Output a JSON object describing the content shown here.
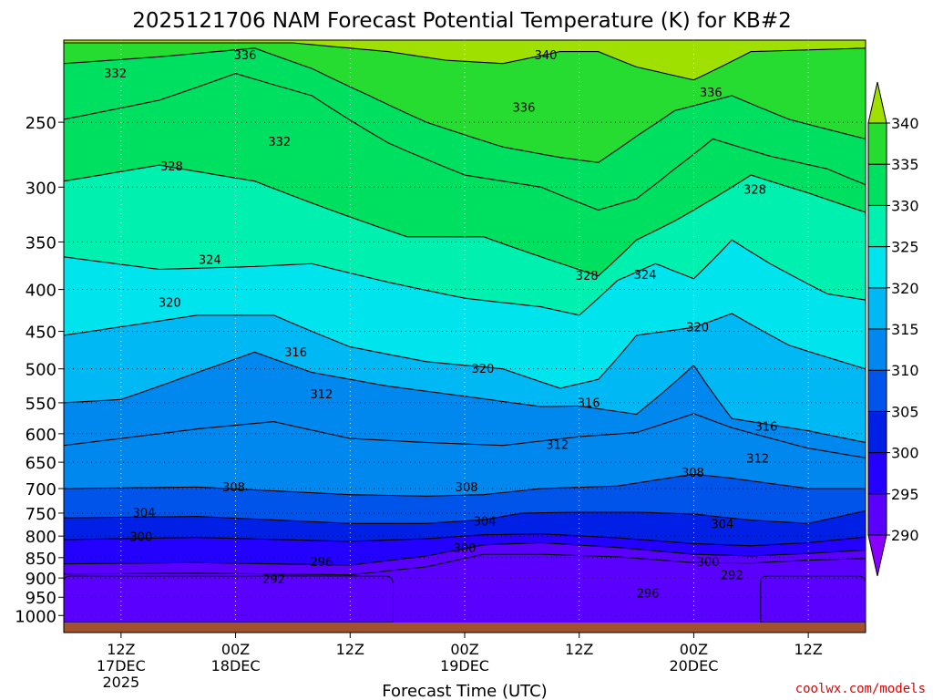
{
  "chart_data": {
    "type": "heatmap",
    "title": "2025121706 NAM Forecast Potential Temperature (K) for KB#2",
    "xlabel": "Forecast Time (UTC)",
    "ylabel": "",
    "y_scale": "log",
    "ylim": [
      1020,
      200
    ],
    "y_ticks": [
      {
        "value": 250,
        "label": "250"
      },
      {
        "value": 300,
        "label": "300"
      },
      {
        "value": 350,
        "label": "350"
      },
      {
        "value": 400,
        "label": "400"
      },
      {
        "value": 450,
        "label": "450"
      },
      {
        "value": 500,
        "label": "500"
      },
      {
        "value": 550,
        "label": "550"
      },
      {
        "value": 600,
        "label": "600"
      },
      {
        "value": 650,
        "label": "650"
      },
      {
        "value": 700,
        "label": "700"
      },
      {
        "value": 750,
        "label": "750"
      },
      {
        "value": 800,
        "label": "800"
      },
      {
        "value": 850,
        "label": "850"
      },
      {
        "value": 900,
        "label": "900"
      },
      {
        "value": 950,
        "label": "950"
      },
      {
        "value": 1000,
        "label": "1000"
      }
    ],
    "xlim": [
      6,
      90
    ],
    "x_ticks": [
      {
        "value": 12,
        "lines": [
          "12Z",
          "17DEC",
          "2025"
        ]
      },
      {
        "value": 24,
        "lines": [
          "00Z",
          "18DEC"
        ]
      },
      {
        "value": 36,
        "lines": [
          "12Z"
        ]
      },
      {
        "value": 48,
        "lines": [
          "00Z",
          "19DEC"
        ]
      },
      {
        "value": 60,
        "lines": [
          "12Z"
        ]
      },
      {
        "value": 72,
        "lines": [
          "00Z",
          "20DEC"
        ]
      },
      {
        "value": 84,
        "lines": [
          "12Z"
        ]
      }
    ],
    "grid": true,
    "colorbar": {
      "levels": [
        290,
        295,
        300,
        305,
        310,
        315,
        320,
        325,
        330,
        335,
        340
      ],
      "labels": [
        "290",
        "295",
        "300",
        "305",
        "310",
        "315",
        "320",
        "325",
        "330",
        "335",
        "340"
      ],
      "colors": [
        "#8a00ff",
        "#5a00ff",
        "#2400ff",
        "#0020e6",
        "#0054ea",
        "#0088ee",
        "#00b8f4",
        "#00e4ee",
        "#00f0b0",
        "#00e060",
        "#26dc30",
        "#a0e000"
      ]
    },
    "isentrope_interval": 4,
    "isentropes": [
      {
        "theta": 292,
        "p": [
          [
            6,
            890
          ],
          [
            20,
            888
          ],
          [
            36,
            892
          ],
          [
            44,
            872
          ],
          [
            50,
            842
          ],
          [
            56,
            842
          ],
          [
            64,
            848
          ],
          [
            72,
            862
          ],
          [
            78,
            863
          ],
          [
            84,
            856
          ],
          [
            90,
            852
          ]
        ]
      },
      {
        "theta": 296,
        "p": [
          [
            6,
            865
          ],
          [
            20,
            862
          ],
          [
            36,
            868
          ],
          [
            44,
            846
          ],
          [
            50,
            820
          ],
          [
            56,
            815
          ],
          [
            64,
            826
          ],
          [
            72,
            842
          ],
          [
            78,
            846
          ],
          [
            84,
            840
          ],
          [
            90,
            832
          ]
        ]
      },
      {
        "theta": 300,
        "p": [
          [
            6,
            808
          ],
          [
            20,
            803
          ],
          [
            36,
            812
          ],
          [
            44,
            806
          ],
          [
            50,
            797
          ],
          [
            56,
            795
          ],
          [
            64,
            804
          ],
          [
            72,
            817
          ],
          [
            78,
            822
          ],
          [
            84,
            815
          ],
          [
            90,
            802
          ]
        ]
      },
      {
        "theta": 304,
        "p": [
          [
            6,
            760
          ],
          [
            20,
            757
          ],
          [
            36,
            772
          ],
          [
            44,
            772
          ],
          [
            50,
            764
          ],
          [
            54,
            750
          ],
          [
            60,
            748
          ],
          [
            66,
            748
          ],
          [
            72,
            752
          ],
          [
            78,
            765
          ],
          [
            84,
            772
          ],
          [
            90,
            745
          ]
        ]
      },
      {
        "theta": 308,
        "p": [
          [
            6,
            700
          ],
          [
            20,
            697
          ],
          [
            36,
            712
          ],
          [
            44,
            715
          ],
          [
            50,
            712
          ],
          [
            56,
            700
          ],
          [
            64,
            695
          ],
          [
            72,
            672
          ],
          [
            76,
            680
          ],
          [
            84,
            700
          ],
          [
            90,
            700
          ]
        ]
      },
      {
        "theta": 312,
        "p": [
          [
            6,
            620
          ],
          [
            20,
            592
          ],
          [
            28,
            580
          ],
          [
            36,
            608
          ],
          [
            44,
            615
          ],
          [
            52,
            620
          ],
          [
            60,
            605
          ],
          [
            66,
            598
          ],
          [
            72,
            567
          ],
          [
            76,
            590
          ],
          [
            84,
            625
          ],
          [
            90,
            642
          ]
        ]
      },
      {
        "theta": 316,
        "p": [
          [
            6,
            550
          ],
          [
            12,
            545
          ],
          [
            20,
            505
          ],
          [
            26,
            477
          ],
          [
            32,
            505
          ],
          [
            40,
            525
          ],
          [
            48,
            540
          ],
          [
            56,
            556
          ],
          [
            60,
            555
          ],
          [
            66,
            568
          ],
          [
            72,
            495
          ],
          [
            76,
            575
          ],
          [
            84,
            595
          ],
          [
            90,
            615
          ]
        ]
      },
      {
        "theta": 320,
        "p": [
          [
            6,
            455
          ],
          [
            20,
            430
          ],
          [
            28,
            430
          ],
          [
            36,
            470
          ],
          [
            44,
            490
          ],
          [
            52,
            500
          ],
          [
            58,
            528
          ],
          [
            62,
            515
          ],
          [
            66,
            455
          ],
          [
            72,
            445
          ],
          [
            76,
            428
          ],
          [
            82,
            468
          ],
          [
            90,
            500
          ]
        ]
      },
      {
        "theta": 324,
        "p": [
          [
            6,
            365
          ],
          [
            16,
            378
          ],
          [
            26,
            375
          ],
          [
            32,
            372
          ],
          [
            40,
            392
          ],
          [
            48,
            410
          ],
          [
            56,
            420
          ],
          [
            60,
            430
          ],
          [
            64,
            390
          ],
          [
            68,
            372
          ],
          [
            72,
            388
          ],
          [
            76,
            348
          ],
          [
            80,
            372
          ],
          [
            86,
            405
          ],
          [
            90,
            412
          ]
        ]
      },
      {
        "theta": 328,
        "p": [
          [
            6,
            295
          ],
          [
            16,
            282
          ],
          [
            26,
            295
          ],
          [
            34,
            320
          ],
          [
            42,
            345
          ],
          [
            50,
            345
          ],
          [
            56,
            365
          ],
          [
            62,
            385
          ],
          [
            66,
            348
          ],
          [
            70,
            330
          ],
          [
            74,
            310
          ],
          [
            78,
            290
          ],
          [
            84,
            305
          ],
          [
            90,
            322
          ]
        ]
      },
      {
        "theta": 332,
        "p": [
          [
            6,
            248
          ],
          [
            16,
            235
          ],
          [
            24,
            218
          ],
          [
            32,
            232
          ],
          [
            40,
            265
          ],
          [
            48,
            290
          ],
          [
            56,
            300
          ],
          [
            62,
            320
          ],
          [
            66,
            310
          ],
          [
            70,
            285
          ],
          [
            74,
            262
          ],
          [
            80,
            275
          ],
          [
            86,
            285
          ],
          [
            90,
            298
          ]
        ]
      },
      {
        "theta": 336,
        "p": [
          [
            6,
            212
          ],
          [
            16,
            208
          ],
          [
            26,
            203
          ],
          [
            32,
            215
          ],
          [
            38,
            232
          ],
          [
            44,
            250
          ],
          [
            52,
            268
          ],
          [
            58,
            276
          ],
          [
            62,
            280
          ],
          [
            66,
            260
          ],
          [
            70,
            242
          ],
          [
            76,
            232
          ],
          [
            82,
            248
          ],
          [
            90,
            262
          ]
        ]
      },
      {
        "theta": 340,
        "p": [
          [
            6,
            200
          ],
          [
            30,
            200
          ],
          [
            40,
            205
          ],
          [
            46,
            210
          ],
          [
            52,
            212
          ],
          [
            58,
            205
          ],
          [
            62,
            205
          ],
          [
            66,
            214
          ],
          [
            72,
            222
          ],
          [
            78,
            205
          ],
          [
            90,
            203
          ]
        ]
      }
    ],
    "contour_labels": [
      {
        "theta": 336,
        "x": 25.0,
        "p": 207,
        "text": "336"
      },
      {
        "theta": 340,
        "x": 56.5,
        "p": 207,
        "text": "340"
      },
      {
        "theta": 332,
        "x": 11.4,
        "p": 218,
        "text": "332"
      },
      {
        "theta": 336,
        "x": 73.8,
        "p": 230,
        "text": "336"
      },
      {
        "theta": 336,
        "x": 54.2,
        "p": 240,
        "text": "336"
      },
      {
        "theta": 332,
        "x": 28.6,
        "p": 264,
        "text": "332"
      },
      {
        "theta": 328,
        "x": 17.3,
        "p": 283,
        "text": "328"
      },
      {
        "theta": 328,
        "x": 78.4,
        "p": 302,
        "text": "328"
      },
      {
        "theta": 324,
        "x": 21.3,
        "p": 368,
        "text": "324"
      },
      {
        "theta": 328,
        "x": 60.8,
        "p": 385,
        "text": "328"
      },
      {
        "theta": 324,
        "x": 66.9,
        "p": 384,
        "text": "324"
      },
      {
        "theta": 320,
        "x": 17.1,
        "p": 415,
        "text": "320"
      },
      {
        "theta": 320,
        "x": 72.4,
        "p": 445,
        "text": "320"
      },
      {
        "theta": 316,
        "x": 30.3,
        "p": 477,
        "text": "316"
      },
      {
        "theta": 320,
        "x": 49.9,
        "p": 500,
        "text": "320"
      },
      {
        "theta": 312,
        "x": 33.0,
        "p": 537,
        "text": "312"
      },
      {
        "theta": 316,
        "x": 61.0,
        "p": 550,
        "text": "316"
      },
      {
        "theta": 316,
        "x": 79.6,
        "p": 588,
        "text": "316"
      },
      {
        "theta": 312,
        "x": 57.7,
        "p": 619,
        "text": "312"
      },
      {
        "theta": 312,
        "x": 78.7,
        "p": 643,
        "text": "312"
      },
      {
        "theta": 308,
        "x": 71.9,
        "p": 669,
        "text": "308"
      },
      {
        "theta": 308,
        "x": 23.8,
        "p": 697,
        "text": "308"
      },
      {
        "theta": 308,
        "x": 48.2,
        "p": 697,
        "text": "308"
      },
      {
        "theta": 304,
        "x": 14.4,
        "p": 749,
        "text": "304"
      },
      {
        "theta": 304,
        "x": 50.1,
        "p": 768,
        "text": "304"
      },
      {
        "theta": 304,
        "x": 75.0,
        "p": 773,
        "text": "304"
      },
      {
        "theta": 300,
        "x": 14.1,
        "p": 802,
        "text": "300"
      },
      {
        "theta": 300,
        "x": 48.0,
        "p": 828,
        "text": "300"
      },
      {
        "theta": 296,
        "x": 33.0,
        "p": 860,
        "text": "296"
      },
      {
        "theta": 300,
        "x": 73.5,
        "p": 860,
        "text": "300"
      },
      {
        "theta": 292,
        "x": 76.0,
        "p": 893,
        "text": "292"
      },
      {
        "theta": 292,
        "x": 28.0,
        "p": 903,
        "text": "292"
      },
      {
        "theta": 296,
        "x": 67.2,
        "p": 940,
        "text": "296"
      }
    ],
    "cold_pools": [
      {
        "theta_max": 292,
        "x_start": 6,
        "x_end": 40.5,
        "p_top": 895
      },
      {
        "theta_max": 292,
        "x_start": 79,
        "x_end": 90,
        "p_top": 895
      }
    ],
    "terrain_color": "#a0522d"
  },
  "credit": "coolwx.com/models"
}
